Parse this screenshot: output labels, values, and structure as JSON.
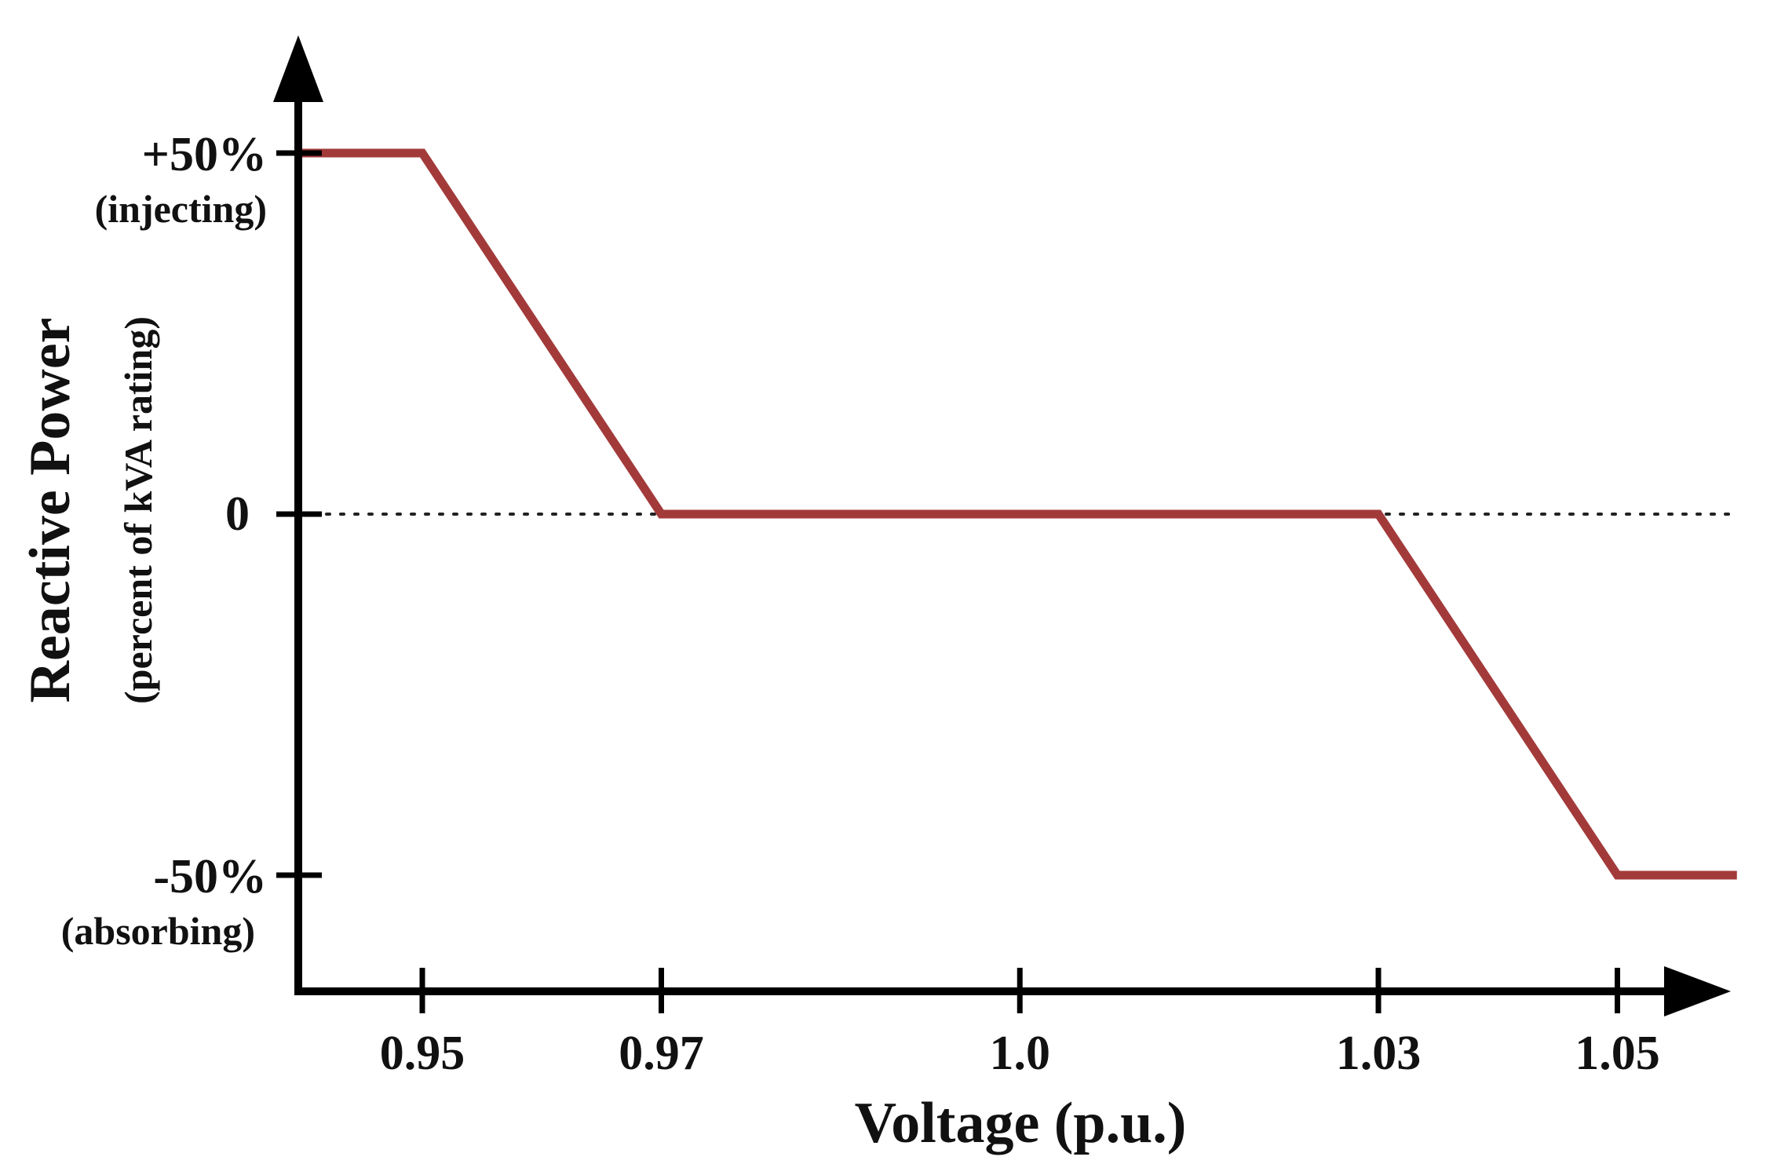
{
  "chart_data": {
    "type": "line",
    "xlabel": "Voltage (p.u.)",
    "ylabel": "Reactive Power",
    "ylabel_sub": "(percent of kVA rating)",
    "x_ticks": [
      {
        "value": 0.95,
        "label": "0.95"
      },
      {
        "value": 0.97,
        "label": "0.97"
      },
      {
        "value": 1.0,
        "label": "1.0"
      },
      {
        "value": 1.03,
        "label": "1.03"
      },
      {
        "value": 1.05,
        "label": "1.05"
      }
    ],
    "y_ticks": [
      {
        "value": 50,
        "label": "+50%",
        "sub": "(injecting)"
      },
      {
        "value": 0,
        "label": "0",
        "sub": ""
      },
      {
        "value": -50,
        "label": "-50%",
        "sub": "(absorbing)"
      }
    ],
    "xlim": [
      0.9395,
      1.06
    ],
    "ylim": [
      -66.5,
      66
    ],
    "zero_line": {
      "y": 0,
      "style": "dotted"
    },
    "series": [
      {
        "color": "#a33a3a",
        "x": [
          0.9395,
          0.95,
          0.97,
          1.03,
          1.05,
          1.06
        ],
        "y": [
          50,
          50,
          0,
          0,
          -50,
          -50
        ]
      }
    ],
    "grid": false,
    "legend": "none"
  }
}
